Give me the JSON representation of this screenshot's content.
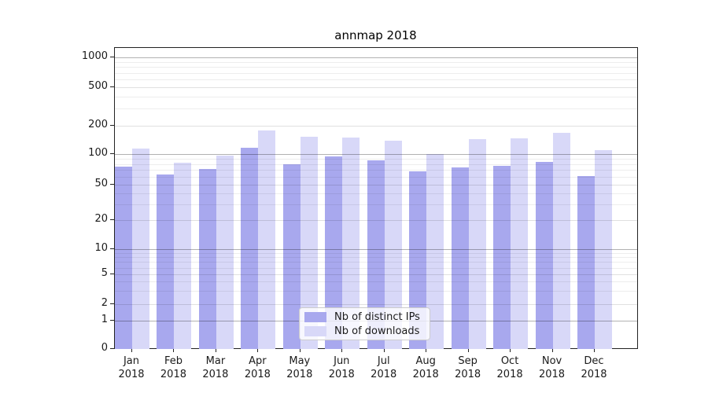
{
  "chart_data": {
    "type": "bar",
    "title": "annmap 2018",
    "categories": [
      "Jan 2018",
      "Feb 2018",
      "Mar 2018",
      "Apr 2018",
      "May 2018",
      "Jun 2018",
      "Jul 2018",
      "Aug 2018",
      "Sep 2018",
      "Oct 2018",
      "Nov 2018",
      "Dec 2018"
    ],
    "series": [
      {
        "name": "Nb of distinct IPs",
        "color": "#a8a8ee",
        "values": [
          75,
          63,
          71,
          117,
          79,
          95,
          87,
          68,
          74,
          77,
          84,
          61
        ]
      },
      {
        "name": "Nb of downloads",
        "color": "#d8d8f8",
        "values": [
          115,
          82,
          96,
          178,
          152,
          149,
          138,
          100,
          143,
          146,
          168,
          111
        ]
      }
    ],
    "y_axis": {
      "ticks": [
        0,
        1,
        2,
        5,
        10,
        20,
        50,
        100,
        200,
        500,
        1000
      ],
      "scale": "symlog",
      "ylim": [
        0,
        1150
      ]
    },
    "x_axis": {
      "year": "2018"
    },
    "grid": true,
    "legend_position": "lower center (inside plot)"
  }
}
